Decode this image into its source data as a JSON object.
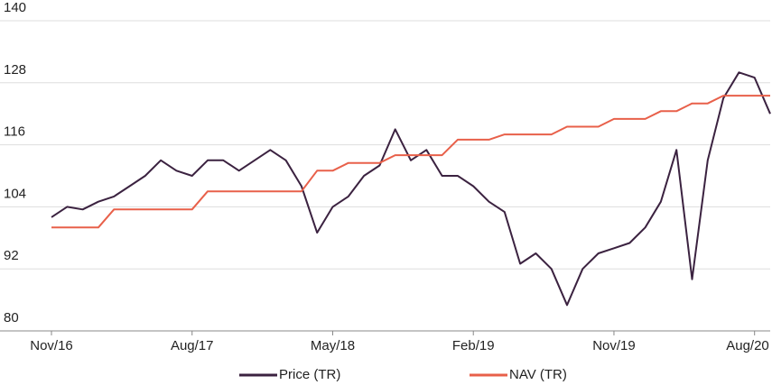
{
  "chart_data": {
    "type": "line",
    "x": [
      "2016-11",
      "2016-12",
      "2017-01",
      "2017-02",
      "2017-03",
      "2017-04",
      "2017-05",
      "2017-06",
      "2017-07",
      "2017-08",
      "2017-09",
      "2017-10",
      "2017-11",
      "2017-12",
      "2018-01",
      "2018-02",
      "2018-03",
      "2018-04",
      "2018-05",
      "2018-06",
      "2018-07",
      "2018-08",
      "2018-09",
      "2018-10",
      "2018-11",
      "2018-12",
      "2019-01",
      "2019-02",
      "2019-03",
      "2019-04",
      "2019-05",
      "2019-06",
      "2019-07",
      "2019-08",
      "2019-09",
      "2019-10",
      "2019-11",
      "2019-12",
      "2020-01",
      "2020-02",
      "2020-03",
      "2020-04",
      "2020-05",
      "2020-06",
      "2020-07",
      "2020-08",
      "2020-09"
    ],
    "series": [
      {
        "name": "Price (TR)",
        "color": "#3b2240",
        "values": [
          102,
          104,
          103.5,
          105,
          106,
          108,
          110,
          113,
          111,
          110,
          113,
          113,
          111,
          113,
          115,
          113,
          108,
          99,
          104,
          106,
          110,
          112,
          119,
          113,
          115,
          110,
          110,
          108,
          105,
          103,
          93,
          95,
          92,
          85,
          92,
          95,
          96,
          97,
          100,
          105,
          115,
          90,
          113,
          125,
          130,
          129,
          122
        ]
      },
      {
        "name": "NAV (TR)",
        "color": "#e8604a",
        "values": [
          100,
          100,
          100,
          100,
          103.5,
          103.5,
          103.5,
          103.5,
          103.5,
          103.5,
          107,
          107,
          107,
          107,
          107,
          107,
          107,
          111,
          111,
          112.5,
          112.5,
          112.5,
          114,
          114,
          114,
          114,
          117,
          117,
          117,
          118,
          118,
          118,
          118,
          119.5,
          119.5,
          119.5,
          121,
          121,
          121,
          122.5,
          122.5,
          124,
          124,
          125.5,
          125.5,
          125.5,
          125.5
        ]
      }
    ],
    "xlim": [
      "2016-11",
      "2020-09"
    ],
    "xticks": [
      {
        "value": "2016-11",
        "label": "Nov/16"
      },
      {
        "value": "2017-08",
        "label": "Aug/17"
      },
      {
        "value": "2018-05",
        "label": "May/18"
      },
      {
        "value": "2019-02",
        "label": "Feb/19"
      },
      {
        "value": "2019-11",
        "label": "Nov/19"
      },
      {
        "value": "2020-08",
        "label": "Aug/20"
      }
    ],
    "ylim": [
      80,
      140
    ],
    "yticks": [
      80,
      92,
      104,
      116,
      128,
      140
    ],
    "grid": true,
    "legend": "bottom"
  }
}
